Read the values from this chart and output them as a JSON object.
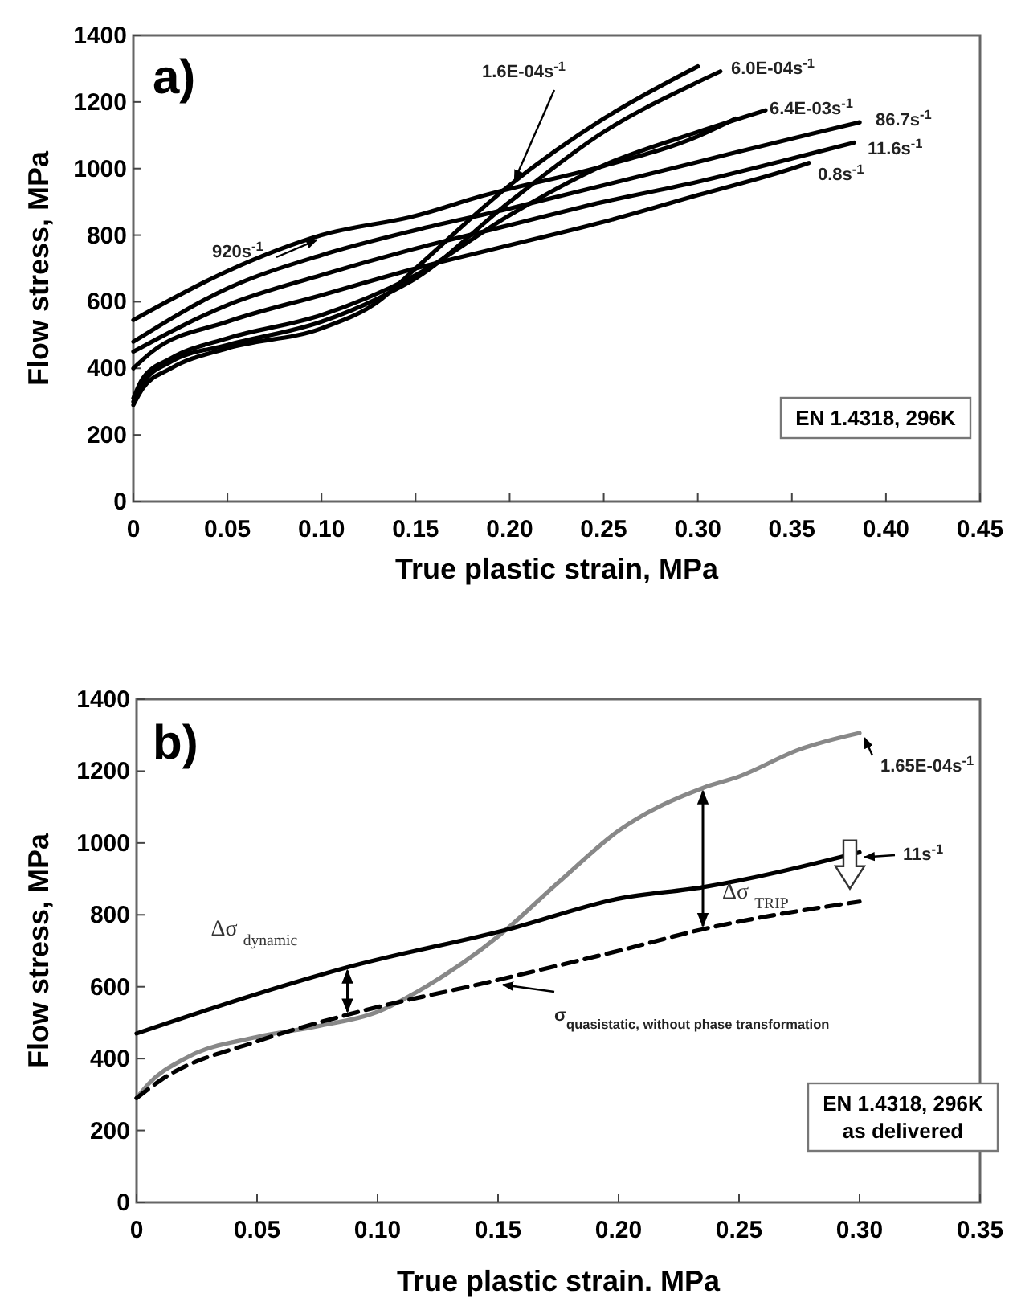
{
  "chart_data": [
    {
      "type": "line",
      "title": "a)",
      "xlabel": "True plastic strain, MPa",
      "ylabel": "Flow stress, MPa",
      "xlim": [
        0,
        0.45
      ],
      "ylim": [
        0,
        1400
      ],
      "xticks": [
        0,
        0.05,
        {
          "value": 0.1,
          "label": "0.10"
        },
        0.15,
        {
          "value": 0.2,
          "label": "0.20"
        },
        0.25,
        {
          "value": 0.3,
          "label": "0.30"
        },
        0.35,
        {
          "value": 0.4,
          "label": "0.40"
        },
        0.45
      ],
      "yticks": [
        0,
        200,
        400,
        600,
        800,
        1000,
        1200,
        1400
      ],
      "grid": false,
      "line_style": "solid",
      "series": [
        {
          "name": "1.6E-04s$^{-1}$",
          "color": "#000000",
          "x": [
            0,
            0.005,
            0.02,
            0.05,
            0.1,
            0.13,
            0.15,
            0.2,
            0.25,
            0.3
          ],
          "values": [
            290,
            340,
            400,
            460,
            520,
            600,
            700,
            950,
            1150,
            1307
          ]
        },
        {
          "name": "6.0E-04s$^{-1}$",
          "color": "#000000",
          "x": [
            0,
            0.005,
            0.02,
            0.05,
            0.1,
            0.13,
            0.15,
            0.2,
            0.25,
            0.3,
            0.312
          ],
          "values": [
            300,
            355,
            420,
            470,
            540,
            610,
            670,
            900,
            1110,
            1260,
            1292
          ]
        },
        {
          "name": "6.4E-03s$^{-1}$",
          "color": "#000000",
          "x": [
            0,
            0.005,
            0.02,
            0.05,
            0.1,
            0.15,
            0.2,
            0.25,
            0.3,
            0.336
          ],
          "values": [
            310,
            370,
            430,
            490,
            560,
            680,
            860,
            1010,
            1110,
            1175
          ]
        },
        {
          "name": "86.7s$^{-1}$",
          "color": "#000000",
          "x": [
            0,
            0.05,
            0.1,
            0.15,
            0.2,
            0.25,
            0.3,
            0.35,
            0.386
          ],
          "values": [
            480,
            640,
            740,
            815,
            880,
            950,
            1020,
            1090,
            1139
          ]
        },
        {
          "name": "11.6s$^{-1}$",
          "color": "#000000",
          "x": [
            0,
            0.05,
            0.1,
            0.15,
            0.2,
            0.25,
            0.3,
            0.35,
            0.383
          ],
          "values": [
            450,
            590,
            680,
            760,
            830,
            900,
            960,
            1030,
            1078
          ]
        },
        {
          "name": "0.8s$^{-1}$",
          "color": "#000000",
          "x": [
            0,
            0.01,
            0.05,
            0.1,
            0.15,
            0.2,
            0.25,
            0.3,
            0.35,
            0.359
          ],
          "values": [
            400,
            450,
            540,
            620,
            700,
            770,
            840,
            920,
            1000,
            1017
          ]
        },
        {
          "name": "920s$^{-1}$",
          "color": "#000000",
          "x": [
            0,
            0.05,
            0.1,
            0.15,
            0.185,
            0.25,
            0.3,
            0.32
          ],
          "values": [
            545,
            692,
            800,
            858,
            917,
            1008,
            1097,
            1150
          ]
        }
      ],
      "annotations": [
        "EN 1.4318, 296K"
      ]
    },
    {
      "type": "line",
      "title": "b)",
      "xlabel": "True plastic strain. MPa",
      "ylabel": "Flow stress, MPa",
      "xlim": [
        0,
        0.35
      ],
      "ylim": [
        0,
        1400
      ],
      "xticks": [
        0,
        0.05,
        {
          "value": 0.1,
          "label": "0.10"
        },
        0.15,
        {
          "value": 0.2,
          "label": "0.20"
        },
        0.25,
        {
          "value": 0.3,
          "label": "0.30"
        },
        0.35
      ],
      "yticks": [
        0,
        200,
        400,
        600,
        800,
        1000,
        1200,
        1400
      ],
      "grid": false,
      "series": [
        {
          "name": "1.65E-04s$^{-1}$",
          "color": "#888888",
          "line_style": "solid",
          "x": [
            0,
            0.005,
            0.02,
            0.05,
            0.075,
            0.1,
            0.12,
            0.15,
            0.175,
            0.2,
            0.235,
            0.25,
            0.275,
            0.3
          ],
          "values": [
            290,
            330,
            400,
            460,
            490,
            530,
            600,
            740,
            890,
            1034,
            1153,
            1185,
            1260,
            1306
          ]
        },
        {
          "name": "11s$^{-1}$",
          "color": "#000000",
          "line_style": "solid",
          "x": [
            0,
            0.05,
            0.0875,
            0.155,
            0.2,
            0.235,
            0.3
          ],
          "values": [
            470,
            580,
            654,
            761,
            845,
            877,
            974
          ]
        },
        {
          "name": "σ$_{quasistatic, without phase transformation}$",
          "color": "#000000",
          "line_style": "dashed",
          "x": [
            0,
            0.01,
            0.05,
            0.0875,
            0.15,
            0.2,
            0.235,
            0.3
          ],
          "values": [
            290,
            340,
            448,
            522,
            619,
            700,
            760,
            837
          ]
        }
      ],
      "annotations": [
        {
          "text": "Δσ $_{dynamic}$",
          "x": 0.0875,
          "y": 654
        },
        {
          "text": "Δσ $_{TRIP}$",
          "x": 0.235,
          "y": 1153
        },
        "EN 1.4318, 296K\nas delivered"
      ]
    }
  ]
}
